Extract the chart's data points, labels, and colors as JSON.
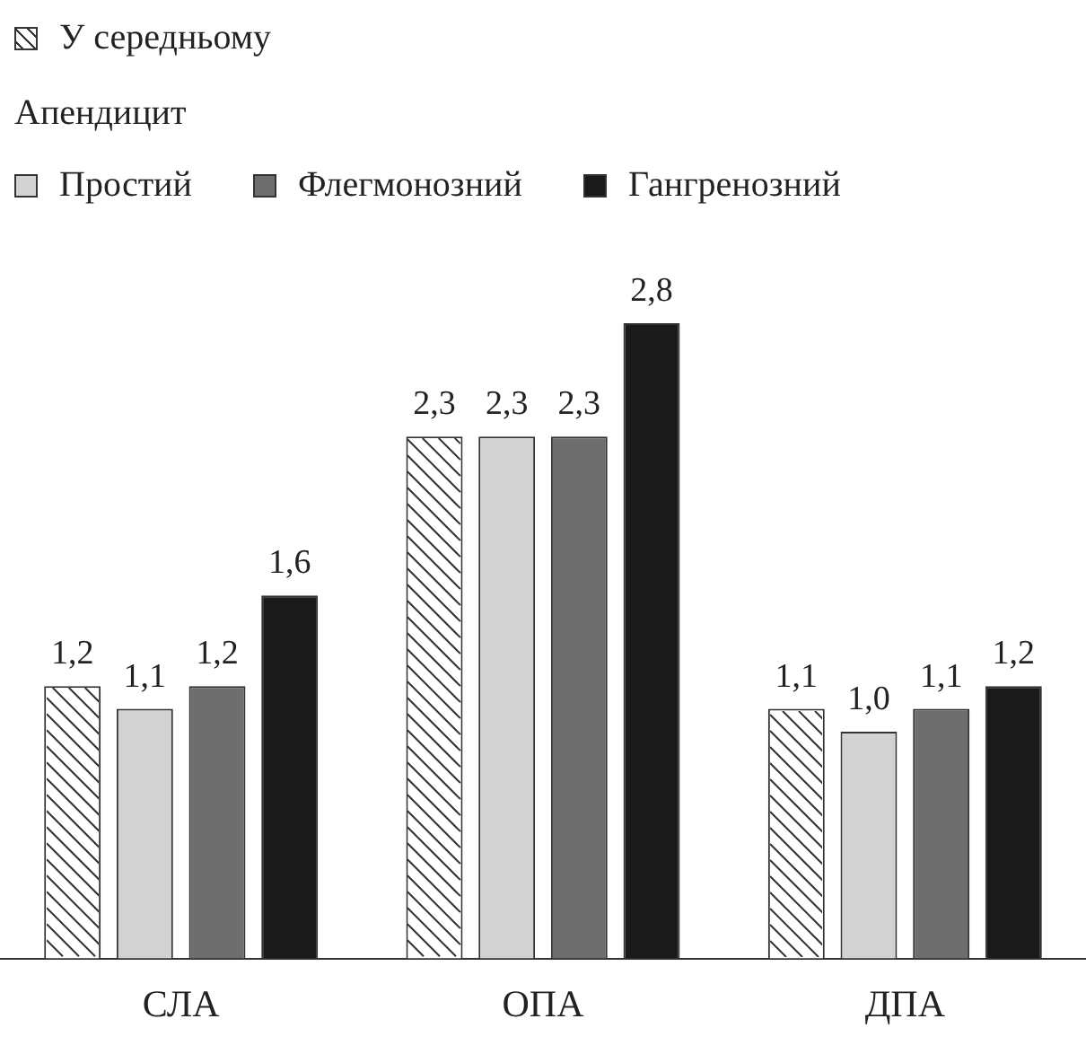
{
  "chart_data": {
    "type": "bar",
    "categories": [
      "СЛА",
      "ОПА",
      "ДПА"
    ],
    "legend_title": "Апендицит",
    "legend": "top left",
    "ylim": [
      0,
      2.8
    ],
    "tick_labels": "x",
    "grid": false,
    "series": [
      {
        "name": "У середньому",
        "color": "#ffffff",
        "values": [
          1.2,
          2.3,
          1.1
        ],
        "value_labels": [
          "1,2",
          "2,3",
          "1,1"
        ]
      },
      {
        "name": "Простий",
        "color": "#d2d2d2",
        "values": [
          1.1,
          2.3,
          1.0
        ],
        "value_labels": [
          "1,1",
          "2,3",
          "1,0"
        ]
      },
      {
        "name": "Флегмонозний",
        "color": "#6e6e6e",
        "values": [
          1.2,
          2.3,
          1.1
        ],
        "value_labels": [
          "1,2",
          "2,3",
          "1,1"
        ]
      },
      {
        "name": "Гангренозний",
        "color": "#1a1a1a",
        "values": [
          1.6,
          2.8,
          1.2
        ],
        "value_labels": [
          "1,6",
          "2,8",
          "1,2"
        ]
      }
    ]
  }
}
